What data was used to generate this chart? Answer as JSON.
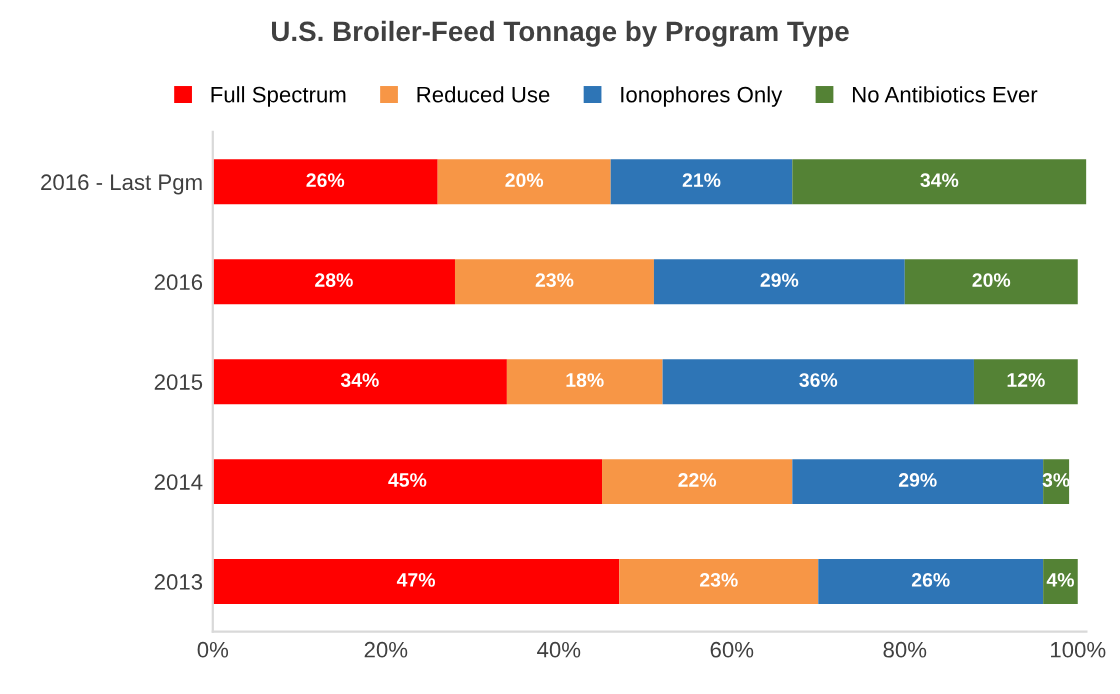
{
  "chart_data": {
    "type": "bar",
    "orientation": "horizontal",
    "stacked": true,
    "title": "U.S. Broiler-Feed Tonnage by Program Type",
    "categories": [
      "2016 - Last Pgm",
      "2016",
      "2015",
      "2014",
      "2013"
    ],
    "series": [
      {
        "name": "Full Spectrum",
        "color": "#ff0000",
        "values": [
          26,
          28,
          34,
          45,
          47
        ],
        "value_labels": [
          "26%",
          "28%",
          "34%",
          "45%",
          "47%"
        ]
      },
      {
        "name": "Reduced Use",
        "color": "#f79646",
        "values": [
          20,
          23,
          18,
          22,
          23
        ],
        "value_labels": [
          "20%",
          "23%",
          "18%",
          "22%",
          "23%"
        ]
      },
      {
        "name": "Ionophores Only",
        "color": "#2e75b6",
        "values": [
          21,
          29,
          36,
          29,
          26
        ],
        "value_labels": [
          "21%",
          "29%",
          "36%",
          "29%",
          "26%"
        ]
      },
      {
        "name": "No Antibiotics Ever",
        "color": "#548235",
        "values": [
          34,
          20,
          12,
          3,
          4
        ],
        "value_labels": [
          "34%",
          "20%",
          "12%",
          "3%",
          "4%"
        ]
      }
    ],
    "xlim": [
      0,
      101
    ],
    "xticks": [
      {
        "value": 0,
        "label": "0%"
      },
      {
        "value": 20,
        "label": "20%"
      },
      {
        "value": 40,
        "label": "40%"
      },
      {
        "value": 60,
        "label": "60%"
      },
      {
        "value": 80,
        "label": "80%"
      },
      {
        "value": 100,
        "label": "100%"
      }
    ],
    "legend": "top",
    "grid": false
  }
}
